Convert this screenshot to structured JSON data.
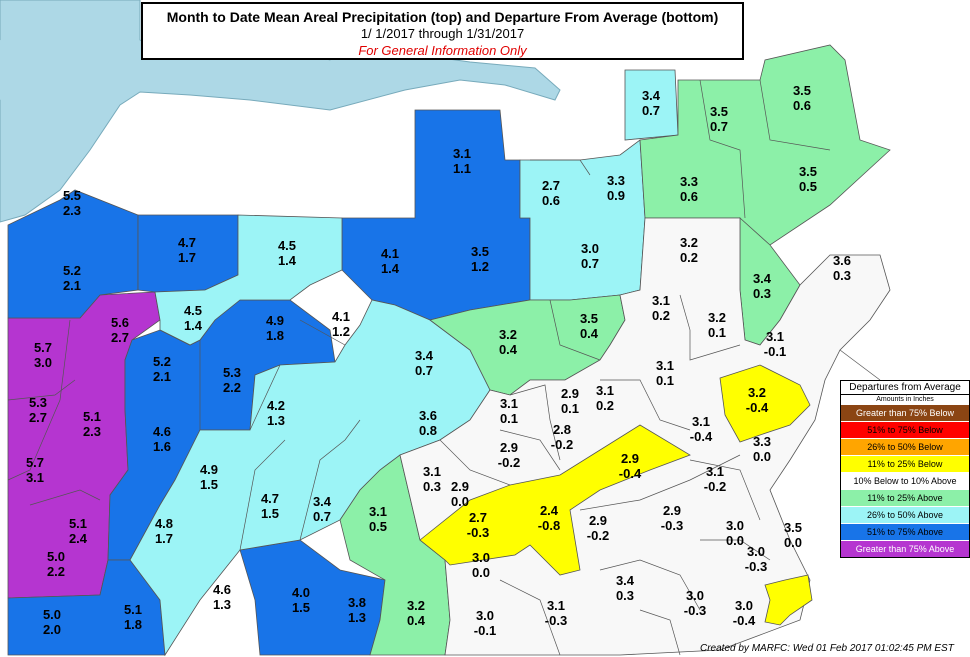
{
  "title": {
    "line1": "Month to Date Mean Areal Precipitation (top) and Departure From Average (bottom)",
    "line2": "1/ 1/2017 through  1/31/2017",
    "line3": "For General Information Only"
  },
  "colors": {
    "lake": "#add8e6",
    "above75": "#b535d0",
    "a51_75": "#1874e8",
    "a26_50": "#9cf4f6",
    "a11_25": "#8cf0a8",
    "near": "#f8f8f8",
    "b11_25": "#ffff00"
  },
  "legend": {
    "header": "Departures from Average",
    "subheader": "Amounts in Inches",
    "items": [
      {
        "label": "Greater than 75% Below",
        "color": "#8b4513",
        "text": "#ffffff"
      },
      {
        "label": "51% to 75% Below",
        "color": "#ff0000",
        "text": "#000000"
      },
      {
        "label": "26% to 50% Below",
        "color": "#ffa500",
        "text": "#000000"
      },
      {
        "label": "11% to 25% Below",
        "color": "#ffff00",
        "text": "#000000"
      },
      {
        "label": "10% Below to 10% Above",
        "color": "#ffffff",
        "text": "#000000"
      },
      {
        "label": "11% to 25% Above",
        "color": "#8cf0a8",
        "text": "#000000"
      },
      {
        "label": "26% to 50% Above",
        "color": "#9cf4f6",
        "text": "#000000"
      },
      {
        "label": "51% to 75% Above",
        "color": "#1874e8",
        "text": "#000000"
      },
      {
        "label": "Greater than 75% Above",
        "color": "#b535d0",
        "text": "#ffffff"
      }
    ]
  },
  "credit": "Created by MARFC: Wed 01 Feb 2017 01:02:45 PM EST",
  "regions": [
    {
      "top": "5.5",
      "bottom": "2.3"
    },
    {
      "top": "5.2",
      "bottom": "2.1"
    },
    {
      "top": "5.7",
      "bottom": "3.0"
    },
    {
      "top": "5.6",
      "bottom": "2.7"
    },
    {
      "top": "5.3",
      "bottom": "2.7"
    },
    {
      "top": "5.1",
      "bottom": "2.3"
    },
    {
      "top": "5.7",
      "bottom": "3.1"
    },
    {
      "top": "5.1",
      "bottom": "2.4"
    },
    {
      "top": "5.0",
      "bottom": "2.2"
    },
    {
      "top": "5.0",
      "bottom": "2.0"
    },
    {
      "top": "5.1",
      "bottom": "1.8"
    },
    {
      "top": "4.7",
      "bottom": "1.7"
    },
    {
      "top": "4.5",
      "bottom": "1.4"
    },
    {
      "top": "5.2",
      "bottom": "2.1"
    },
    {
      "top": "4.6",
      "bottom": "1.6"
    },
    {
      "top": "4.8",
      "bottom": "1.7"
    },
    {
      "top": "5.3",
      "bottom": "2.2"
    },
    {
      "top": "4.9",
      "bottom": "1.8"
    },
    {
      "top": "4.5",
      "bottom": "1.4"
    },
    {
      "top": "4.1",
      "bottom": "1.2"
    },
    {
      "top": "4.1",
      "bottom": "1.4"
    },
    {
      "top": "3.1",
      "bottom": "1.1"
    },
    {
      "top": "3.5",
      "bottom": "1.2"
    },
    {
      "top": "4.2",
      "bottom": "1.3"
    },
    {
      "top": "4.9",
      "bottom": "1.5"
    },
    {
      "top": "4.7",
      "bottom": "1.5"
    },
    {
      "top": "3.4",
      "bottom": "0.7"
    },
    {
      "top": "4.6",
      "bottom": "1.3"
    },
    {
      "top": "4.0",
      "bottom": "1.5"
    },
    {
      "top": "3.8",
      "bottom": "1.3"
    },
    {
      "top": "3.1",
      "bottom": "0.5"
    },
    {
      "top": "3.2",
      "bottom": "0.4"
    },
    {
      "top": "3.4",
      "bottom": "0.7"
    },
    {
      "top": "3.6",
      "bottom": "0.8"
    },
    {
      "top": "2.7",
      "bottom": "0.6"
    },
    {
      "top": "3.3",
      "bottom": "0.9"
    },
    {
      "top": "3.4",
      "bottom": "0.7"
    },
    {
      "top": "3.5",
      "bottom": "0.7"
    },
    {
      "top": "3.3",
      "bottom": "0.6"
    },
    {
      "top": "3.5",
      "bottom": "0.6"
    },
    {
      "top": "3.5",
      "bottom": "0.5"
    },
    {
      "top": "3.0",
      "bottom": "0.7"
    },
    {
      "top": "3.2",
      "bottom": "0.2"
    },
    {
      "top": "3.4",
      "bottom": "0.3"
    },
    {
      "top": "3.6",
      "bottom": "0.3"
    },
    {
      "top": "3.2",
      "bottom": "0.4"
    },
    {
      "top": "3.5",
      "bottom": "0.4"
    },
    {
      "top": "3.1",
      "bottom": "0.2"
    },
    {
      "top": "3.2",
      "bottom": "0.1"
    },
    {
      "top": "3.1",
      "bottom": "-0.1"
    },
    {
      "top": "3.1",
      "bottom": "0.1"
    },
    {
      "top": "2.9",
      "bottom": "0.1"
    },
    {
      "top": "3.1",
      "bottom": "0.2"
    },
    {
      "top": "3.1",
      "bottom": "0.1"
    },
    {
      "top": "3.2",
      "bottom": "-0.4"
    },
    {
      "top": "2.8",
      "bottom": "-0.2"
    },
    {
      "top": "2.9",
      "bottom": "-0.2"
    },
    {
      "top": "3.1",
      "bottom": "-0.4"
    },
    {
      "top": "2.9",
      "bottom": "-0.4"
    },
    {
      "top": "3.3",
      "bottom": "0.0"
    },
    {
      "top": "3.1",
      "bottom": "0.3"
    },
    {
      "top": "2.9",
      "bottom": "0.0"
    },
    {
      "top": "2.7",
      "bottom": "-0.3"
    },
    {
      "top": "2.4",
      "bottom": "-0.8"
    },
    {
      "top": "2.9",
      "bottom": "-0.2"
    },
    {
      "top": "2.9",
      "bottom": "-0.3"
    },
    {
      "top": "3.1",
      "bottom": "-0.2"
    },
    {
      "top": "3.0",
      "bottom": "0.0"
    },
    {
      "top": "3.5",
      "bottom": "0.0"
    },
    {
      "top": "3.0",
      "bottom": "-0.3"
    },
    {
      "top": "3.0",
      "bottom": "0.0"
    },
    {
      "top": "3.4",
      "bottom": "0.3"
    },
    {
      "top": "3.0",
      "bottom": "-0.1"
    },
    {
      "top": "3.1",
      "bottom": "-0.3"
    },
    {
      "top": "3.0",
      "bottom": "-0.3"
    },
    {
      "top": "3.0",
      "bottom": "-0.4"
    }
  ]
}
